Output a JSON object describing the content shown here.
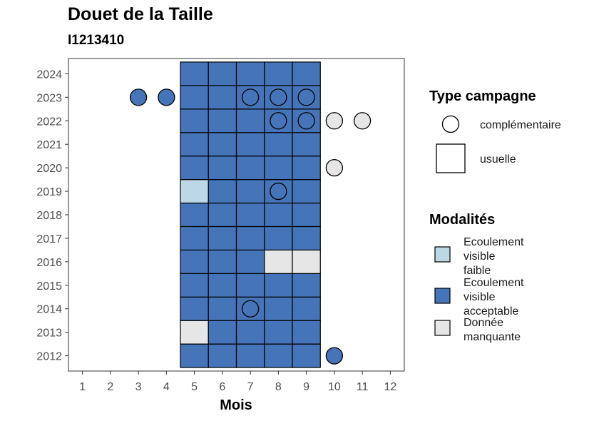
{
  "chart_data": {
    "type": "heatmap",
    "title": "Douet de la Taille",
    "subtitle": "I1213410",
    "xlabel": "Mois",
    "ylabel": "",
    "x_ticks": [
      1,
      2,
      3,
      4,
      5,
      6,
      7,
      8,
      9,
      10,
      11,
      12
    ],
    "y_ticks": [
      2012,
      2013,
      2014,
      2015,
      2016,
      2017,
      2018,
      2019,
      2020,
      2021,
      2022,
      2023,
      2024
    ],
    "xlim": [
      0.5,
      12.5
    ],
    "ylim": [
      2011.35,
      2024.65
    ],
    "grid": false,
    "colors": {
      "Ecoulement visible faible": "#bcd7e6",
      "Ecoulement visible acceptable": "#4674b8",
      "Donnée manquante": "#e6e6e6"
    },
    "cells": [
      {
        "year": 2012,
        "month": 5,
        "modalite": "Ecoulement visible acceptable"
      },
      {
        "year": 2012,
        "month": 6,
        "modalite": "Ecoulement visible acceptable"
      },
      {
        "year": 2012,
        "month": 7,
        "modalite": "Ecoulement visible acceptable"
      },
      {
        "year": 2012,
        "month": 8,
        "modalite": "Ecoulement visible acceptable"
      },
      {
        "year": 2012,
        "month": 9,
        "modalite": "Ecoulement visible acceptable"
      },
      {
        "year": 2013,
        "month": 5,
        "modalite": "Donnée manquante"
      },
      {
        "year": 2013,
        "month": 6,
        "modalite": "Ecoulement visible acceptable"
      },
      {
        "year": 2013,
        "month": 7,
        "modalite": "Ecoulement visible acceptable"
      },
      {
        "year": 2013,
        "month": 8,
        "modalite": "Ecoulement visible acceptable"
      },
      {
        "year": 2013,
        "month": 9,
        "modalite": "Ecoulement visible acceptable"
      },
      {
        "year": 2014,
        "month": 5,
        "modalite": "Ecoulement visible acceptable"
      },
      {
        "year": 2014,
        "month": 6,
        "modalite": "Ecoulement visible acceptable"
      },
      {
        "year": 2014,
        "month": 7,
        "modalite": "Ecoulement visible acceptable"
      },
      {
        "year": 2014,
        "month": 8,
        "modalite": "Ecoulement visible acceptable"
      },
      {
        "year": 2014,
        "month": 9,
        "modalite": "Ecoulement visible acceptable"
      },
      {
        "year": 2015,
        "month": 5,
        "modalite": "Ecoulement visible acceptable"
      },
      {
        "year": 2015,
        "month": 6,
        "modalite": "Ecoulement visible acceptable"
      },
      {
        "year": 2015,
        "month": 7,
        "modalite": "Ecoulement visible acceptable"
      },
      {
        "year": 2015,
        "month": 8,
        "modalite": "Ecoulement visible acceptable"
      },
      {
        "year": 2015,
        "month": 9,
        "modalite": "Ecoulement visible acceptable"
      },
      {
        "year": 2016,
        "month": 5,
        "modalite": "Ecoulement visible acceptable"
      },
      {
        "year": 2016,
        "month": 6,
        "modalite": "Ecoulement visible acceptable"
      },
      {
        "year": 2016,
        "month": 7,
        "modalite": "Ecoulement visible acceptable"
      },
      {
        "year": 2016,
        "month": 8,
        "modalite": "Donnée manquante"
      },
      {
        "year": 2016,
        "month": 9,
        "modalite": "Donnée manquante"
      },
      {
        "year": 2017,
        "month": 5,
        "modalite": "Ecoulement visible acceptable"
      },
      {
        "year": 2017,
        "month": 6,
        "modalite": "Ecoulement visible acceptable"
      },
      {
        "year": 2017,
        "month": 7,
        "modalite": "Ecoulement visible acceptable"
      },
      {
        "year": 2017,
        "month": 8,
        "modalite": "Ecoulement visible acceptable"
      },
      {
        "year": 2017,
        "month": 9,
        "modalite": "Ecoulement visible acceptable"
      },
      {
        "year": 2018,
        "month": 5,
        "modalite": "Ecoulement visible acceptable"
      },
      {
        "year": 2018,
        "month": 6,
        "modalite": "Ecoulement visible acceptable"
      },
      {
        "year": 2018,
        "month": 7,
        "modalite": "Ecoulement visible acceptable"
      },
      {
        "year": 2018,
        "month": 8,
        "modalite": "Ecoulement visible acceptable"
      },
      {
        "year": 2018,
        "month": 9,
        "modalite": "Ecoulement visible acceptable"
      },
      {
        "year": 2019,
        "month": 5,
        "modalite": "Ecoulement visible faible"
      },
      {
        "year": 2019,
        "month": 6,
        "modalite": "Ecoulement visible acceptable"
      },
      {
        "year": 2019,
        "month": 7,
        "modalite": "Ecoulement visible acceptable"
      },
      {
        "year": 2019,
        "month": 8,
        "modalite": "Ecoulement visible acceptable"
      },
      {
        "year": 2019,
        "month": 9,
        "modalite": "Ecoulement visible acceptable"
      },
      {
        "year": 2020,
        "month": 5,
        "modalite": "Ecoulement visible acceptable"
      },
      {
        "year": 2020,
        "month": 6,
        "modalite": "Ecoulement visible acceptable"
      },
      {
        "year": 2020,
        "month": 7,
        "modalite": "Ecoulement visible acceptable"
      },
      {
        "year": 2020,
        "month": 8,
        "modalite": "Ecoulement visible acceptable"
      },
      {
        "year": 2020,
        "month": 9,
        "modalite": "Ecoulement visible acceptable"
      },
      {
        "year": 2021,
        "month": 5,
        "modalite": "Ecoulement visible acceptable"
      },
      {
        "year": 2021,
        "month": 6,
        "modalite": "Ecoulement visible acceptable"
      },
      {
        "year": 2021,
        "month": 7,
        "modalite": "Ecoulement visible acceptable"
      },
      {
        "year": 2021,
        "month": 8,
        "modalite": "Ecoulement visible acceptable"
      },
      {
        "year": 2021,
        "month": 9,
        "modalite": "Ecoulement visible acceptable"
      },
      {
        "year": 2022,
        "month": 5,
        "modalite": "Ecoulement visible acceptable"
      },
      {
        "year": 2022,
        "month": 6,
        "modalite": "Ecoulement visible acceptable"
      },
      {
        "year": 2022,
        "month": 7,
        "modalite": "Ecoulement visible acceptable"
      },
      {
        "year": 2022,
        "month": 8,
        "modalite": "Ecoulement visible acceptable"
      },
      {
        "year": 2022,
        "month": 9,
        "modalite": "Ecoulement visible acceptable"
      },
      {
        "year": 2023,
        "month": 5,
        "modalite": "Ecoulement visible acceptable"
      },
      {
        "year": 2023,
        "month": 6,
        "modalite": "Ecoulement visible acceptable"
      },
      {
        "year": 2023,
        "month": 7,
        "modalite": "Ecoulement visible acceptable"
      },
      {
        "year": 2023,
        "month": 8,
        "modalite": "Ecoulement visible acceptable"
      },
      {
        "year": 2023,
        "month": 9,
        "modalite": "Ecoulement visible acceptable"
      },
      {
        "year": 2024,
        "month": 5,
        "modalite": "Ecoulement visible acceptable"
      },
      {
        "year": 2024,
        "month": 6,
        "modalite": "Ecoulement visible acceptable"
      },
      {
        "year": 2024,
        "month": 7,
        "modalite": "Ecoulement visible acceptable"
      },
      {
        "year": 2024,
        "month": 8,
        "modalite": "Ecoulement visible acceptable"
      },
      {
        "year": 2024,
        "month": 9,
        "modalite": "Ecoulement visible acceptable"
      }
    ],
    "points": [
      {
        "year": 2023,
        "month": 3,
        "modalite": "Ecoulement visible acceptable"
      },
      {
        "year": 2023,
        "month": 4,
        "modalite": "Ecoulement visible acceptable"
      },
      {
        "year": 2023,
        "month": 7,
        "modalite": "Ecoulement visible acceptable"
      },
      {
        "year": 2023,
        "month": 8,
        "modalite": "Ecoulement visible acceptable"
      },
      {
        "year": 2023,
        "month": 9,
        "modalite": "Ecoulement visible acceptable"
      },
      {
        "year": 2022,
        "month": 8,
        "modalite": "Ecoulement visible acceptable"
      },
      {
        "year": 2022,
        "month": 9,
        "modalite": "Ecoulement visible acceptable"
      },
      {
        "year": 2022,
        "month": 10,
        "modalite": "Donnée manquante"
      },
      {
        "year": 2022,
        "month": 11,
        "modalite": "Donnée manquante"
      },
      {
        "year": 2020,
        "month": 10,
        "modalite": "Donnée manquante"
      },
      {
        "year": 2019,
        "month": 8,
        "modalite": "Ecoulement visible acceptable"
      },
      {
        "year": 2014,
        "month": 7,
        "modalite": "Ecoulement visible acceptable"
      },
      {
        "year": 2012,
        "month": 10,
        "modalite": "Ecoulement visible acceptable"
      }
    ],
    "legend": {
      "position": "right",
      "type_title": "Type campagne",
      "type_items": [
        {
          "label": "complémentaire",
          "shape": "circle"
        },
        {
          "label": "usuelle",
          "shape": "square"
        }
      ],
      "modalites_title": "Modalités",
      "modalites_items": [
        {
          "lines": [
            "Ecoulement",
            "visible",
            "faible"
          ],
          "modalite": "Ecoulement visible faible"
        },
        {
          "lines": [
            "Ecoulement",
            "visible",
            "acceptable"
          ],
          "modalite": "Ecoulement visible acceptable"
        },
        {
          "lines": [
            "Donnée",
            "manquante"
          ],
          "modalite": "Donnée manquante"
        }
      ]
    }
  }
}
